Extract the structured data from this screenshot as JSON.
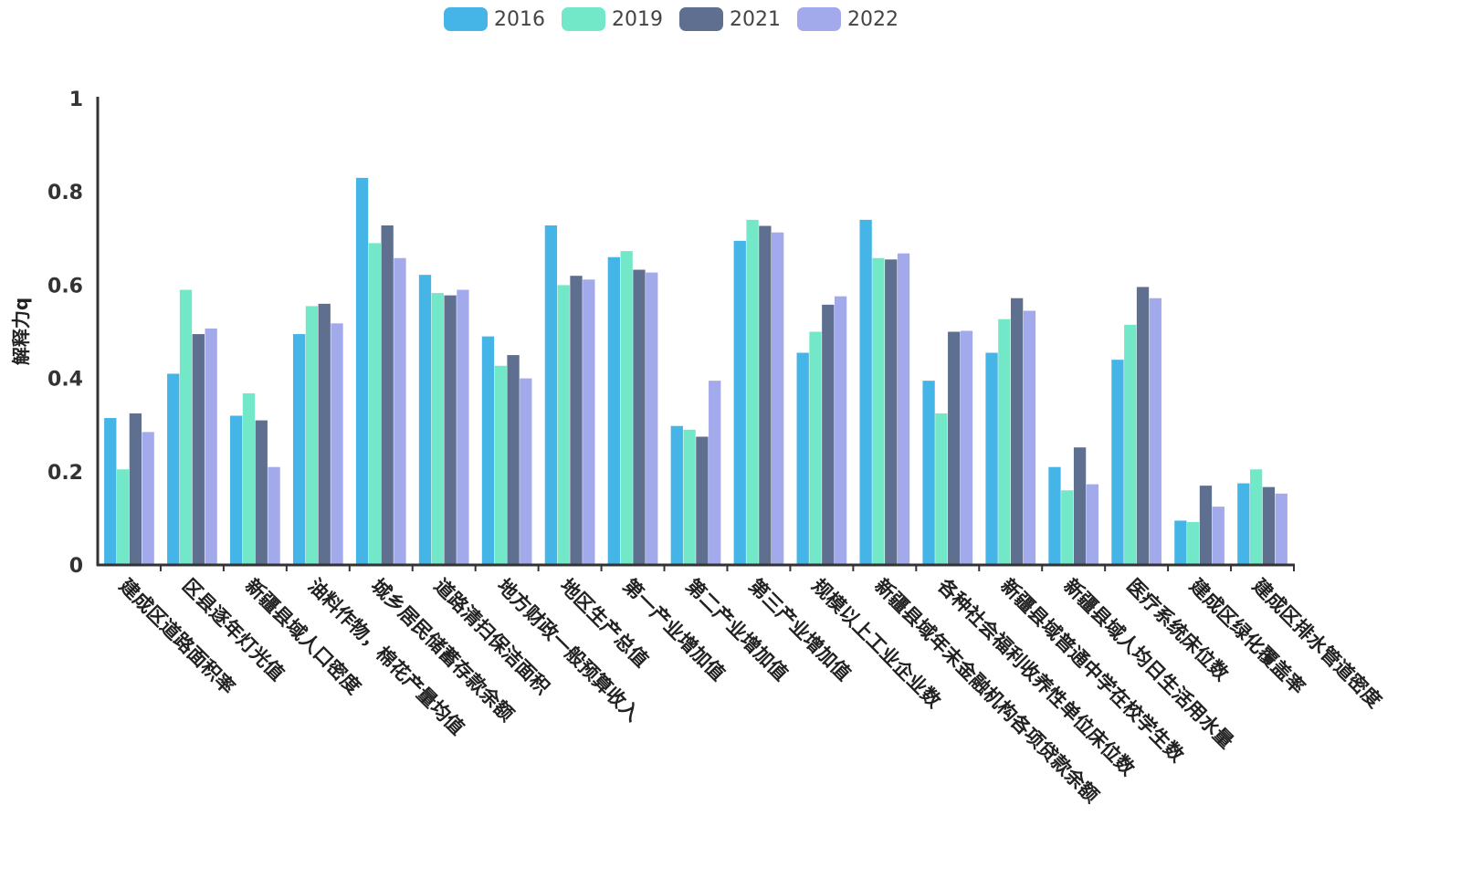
{
  "chart_data": {
    "type": "bar",
    "title": "",
    "xlabel": "",
    "ylabel": "解释力q",
    "ylim": [
      0,
      1
    ],
    "yticks": [
      "0",
      "0.2",
      "0.4",
      "0.6",
      "0.8",
      "1"
    ],
    "legend_position": "top-center",
    "categories": [
      "建成区道路面积率",
      "区县逐年灯光值",
      "新疆县域人口密度",
      "油料作物，棉花产量均值",
      "城乡居民储蓄存款余额",
      "道路清扫保洁面积",
      "地方财政一般预算收入",
      "地区生产总值",
      "第一产业增加值",
      "第二产业增加值",
      "第三产业增加值",
      "规模以上工业企业数",
      "新疆县域年末金融机构各项贷款余额",
      "各种社会福利收养性单位床位数",
      "新疆县域普通中学在校学生数",
      "新疆县域人均日生活用水量",
      "医疗系统床位数",
      "建成区绿化覆盖率",
      "建成区排水管道密度"
    ],
    "series": [
      {
        "name": "2016",
        "color": "#45b4e6",
        "values": [
          0.315,
          0.41,
          0.32,
          0.495,
          0.83,
          0.622,
          0.49,
          0.728,
          0.66,
          0.298,
          0.695,
          0.455,
          0.74,
          0.395,
          0.455,
          0.21,
          0.44,
          0.095,
          0.175
        ]
      },
      {
        "name": "2019",
        "color": "#72e8c8",
        "values": [
          0.205,
          0.59,
          0.368,
          0.555,
          0.69,
          0.583,
          0.427,
          0.6,
          0.673,
          0.29,
          0.74,
          0.5,
          0.658,
          0.325,
          0.527,
          0.16,
          0.515,
          0.092,
          0.205
        ]
      },
      {
        "name": "2021",
        "color": "#5f6f8f",
        "values": [
          0.325,
          0.495,
          0.31,
          0.56,
          0.728,
          0.578,
          0.45,
          0.62,
          0.633,
          0.275,
          0.727,
          0.558,
          0.655,
          0.5,
          0.572,
          0.252,
          0.596,
          0.17,
          0.167
        ]
      },
      {
        "name": "2022",
        "color": "#a3aaeb",
        "values": [
          0.285,
          0.507,
          0.21,
          0.518,
          0.658,
          0.59,
          0.4,
          0.612,
          0.627,
          0.395,
          0.713,
          0.576,
          0.668,
          0.502,
          0.545,
          0.173,
          0.572,
          0.125,
          0.153
        ]
      }
    ]
  }
}
